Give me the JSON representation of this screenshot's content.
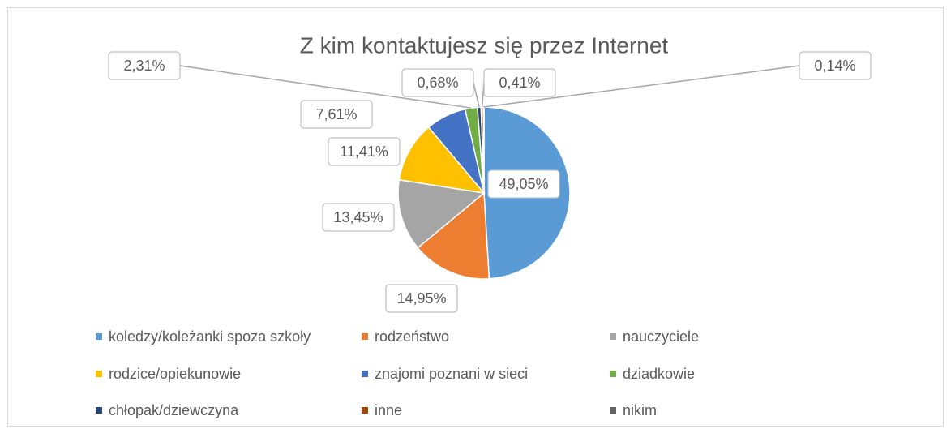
{
  "chart_data": {
    "type": "pie",
    "title": "Z kim kontaktujesz się przez Internet",
    "categories": [
      "koledzy/koleżanki spoza szkoły",
      "rodzeństwo",
      "nauczyciele",
      "rodzice/opiekunowie",
      "znajomi poznani w sieci",
      "dziadkowie",
      "chłopak/dziewczyna",
      "inne",
      "nikim"
    ],
    "values": [
      49.05,
      14.95,
      13.45,
      11.41,
      7.61,
      2.31,
      0.68,
      0.41,
      0.14
    ],
    "value_labels": [
      "49,05%",
      "14,95%",
      "13,45%",
      "11,41%",
      "7,61%",
      "2,31%",
      "0,68%",
      "0,41%",
      "0,14%"
    ],
    "colors": [
      "#5b9bd5",
      "#ed7d31",
      "#a5a5a5",
      "#ffc000",
      "#4472c4",
      "#70ad47",
      "#264478",
      "#9e480e",
      "#636363"
    ],
    "legend": "bottom"
  }
}
